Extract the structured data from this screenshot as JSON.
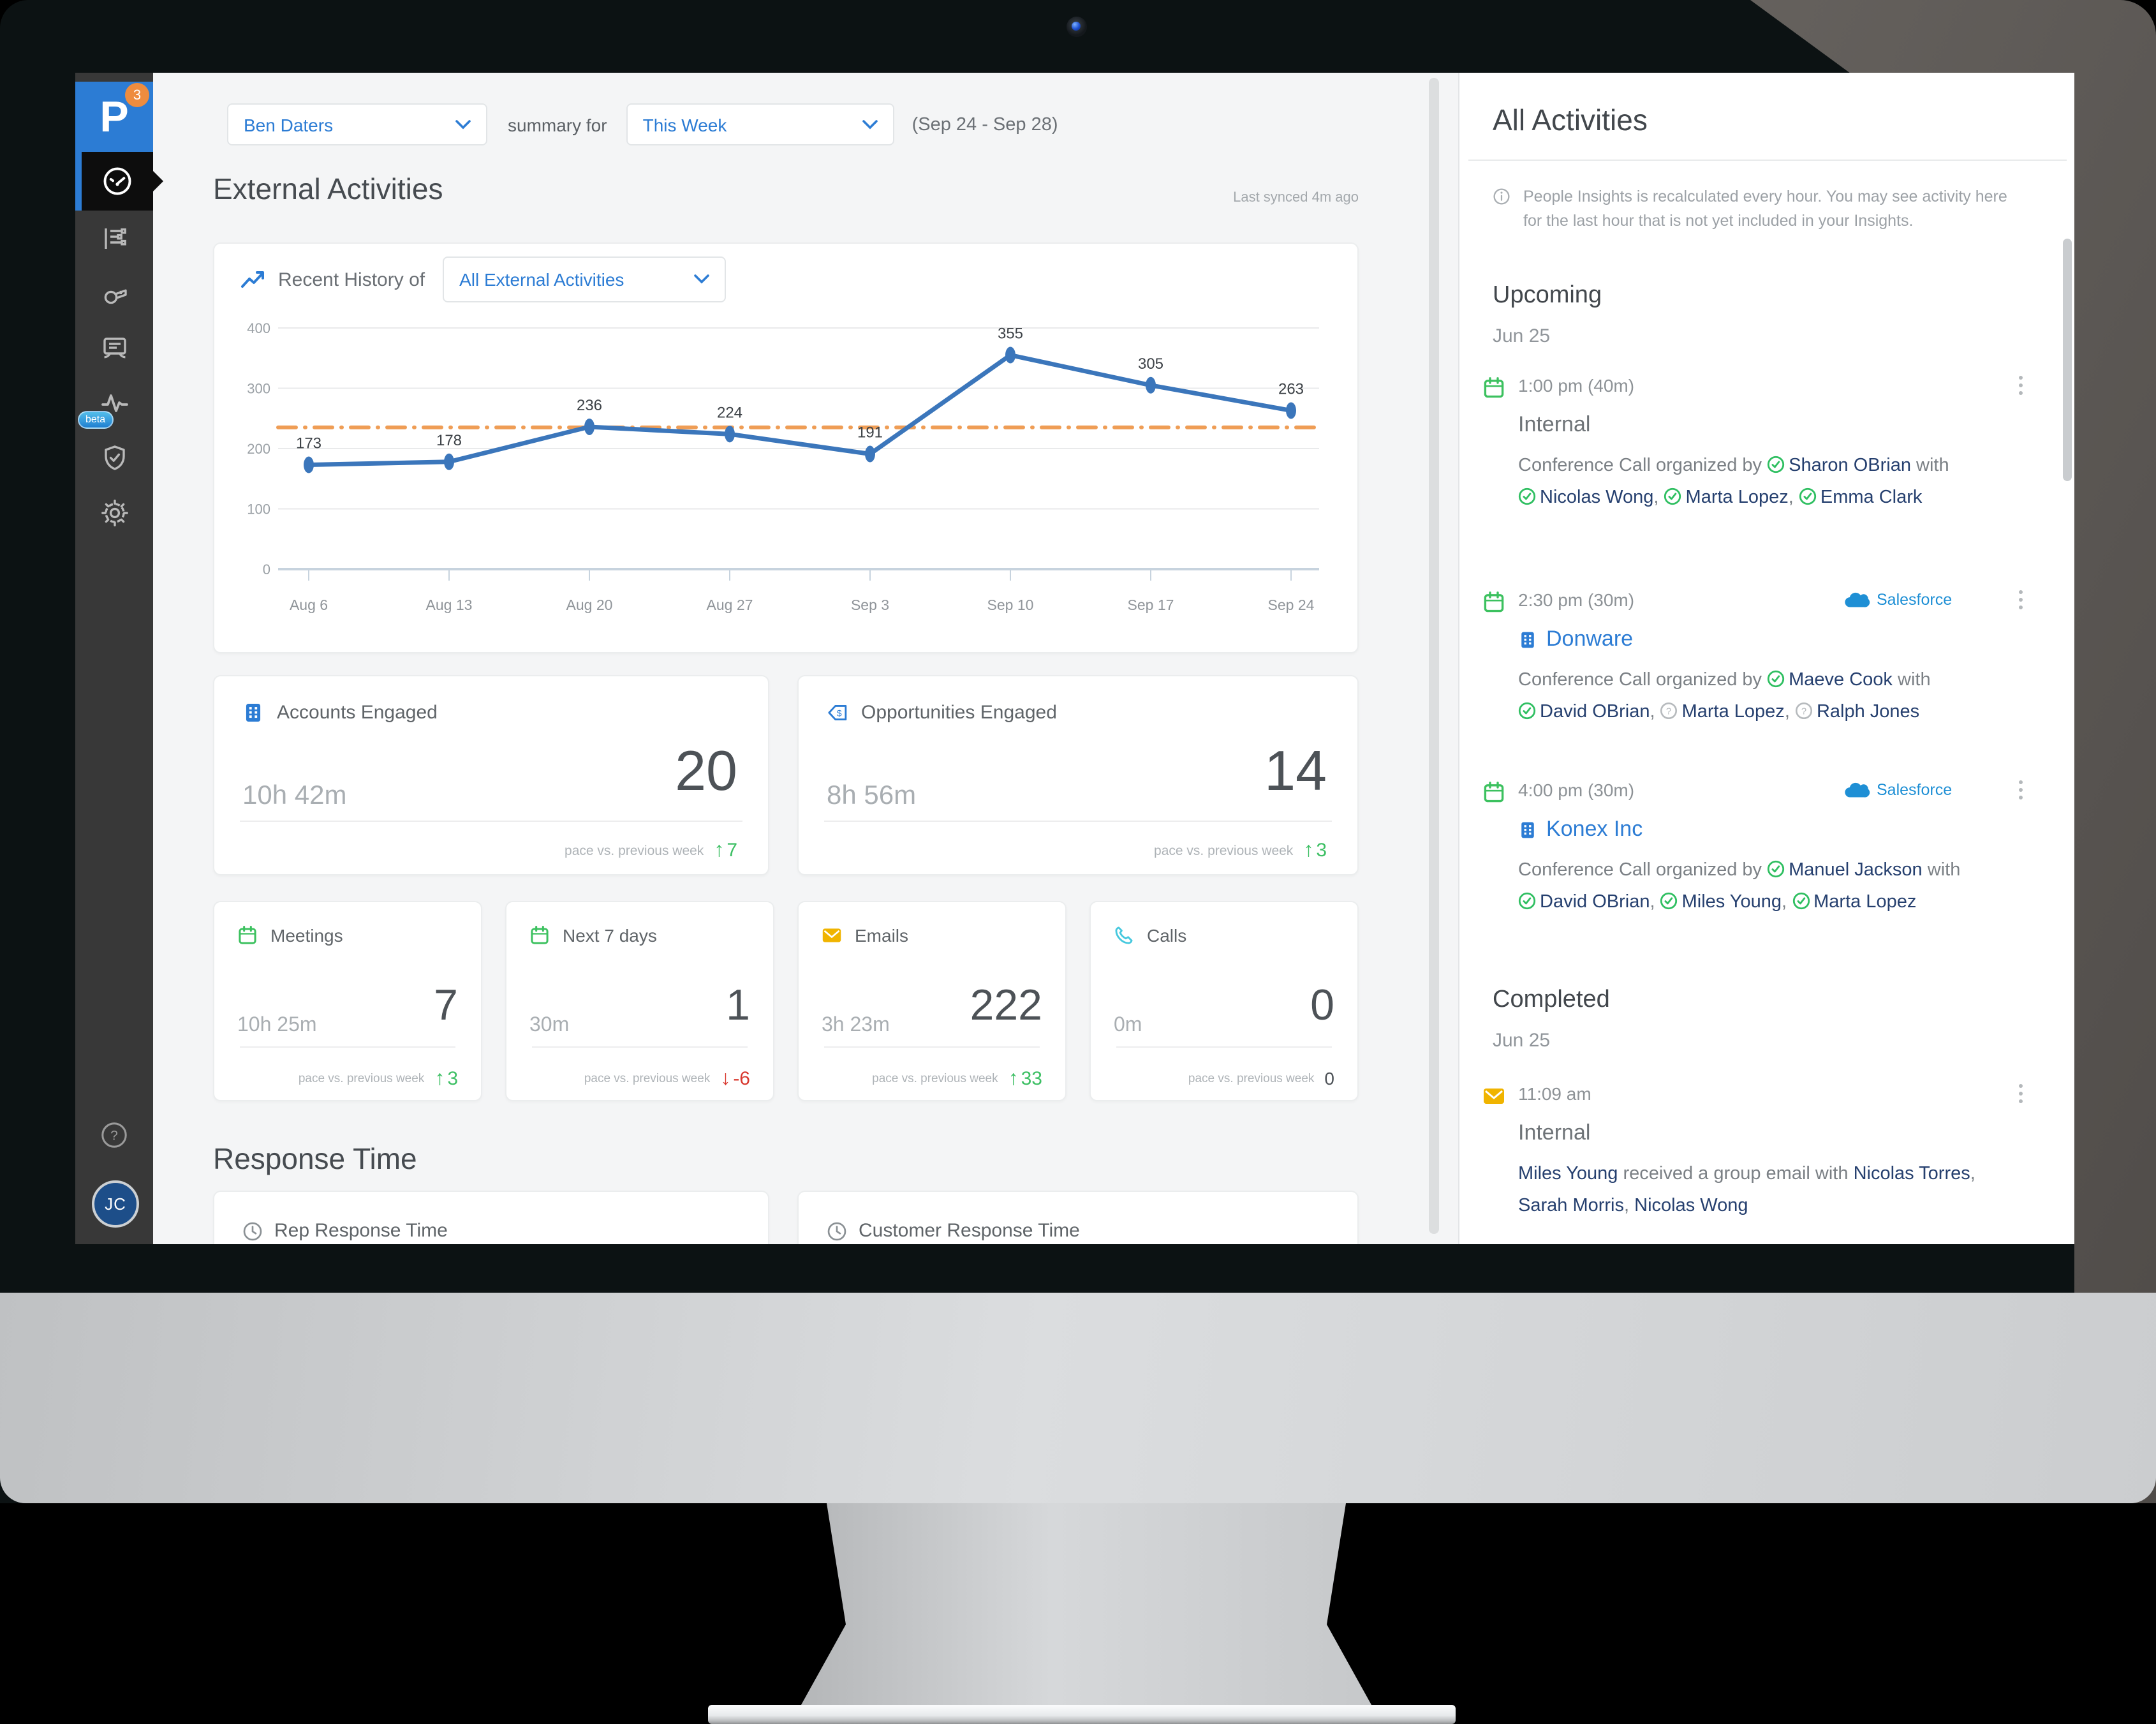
{
  "colors": {
    "accent": "#2c7cd4",
    "line": "#3b76bb",
    "threshold": "#ef9d55",
    "green": "#3cbf63",
    "red": "#d8382e",
    "yellow": "#f0b400",
    "cyan": "#45c8de",
    "navy": "#26406f",
    "salesforce": "#1e8fd5"
  },
  "sidebar": {
    "logo": "P",
    "logo_badge": "3",
    "avatar": "JC",
    "items": [
      {
        "name": "dashboard",
        "icon": "gauge-icon",
        "active": true
      },
      {
        "name": "insights",
        "icon": "list-icon"
      },
      {
        "name": "coaching",
        "icon": "whistle-icon"
      },
      {
        "name": "presentation",
        "icon": "screen-icon"
      },
      {
        "name": "activity",
        "icon": "pulse-icon",
        "badge": "beta"
      },
      {
        "name": "security",
        "icon": "shield-icon"
      },
      {
        "name": "settings",
        "icon": "gear-icon"
      }
    ]
  },
  "topbar": {
    "user": "Ben Daters",
    "summary_for": "summary for",
    "period": "This Week",
    "range": "(Sep 24 - Sep 28)"
  },
  "main": {
    "section_title": "External Activities",
    "last_synced": "Last synced 4m ago",
    "chart": {
      "history_label": "Recent History of",
      "selector": "All External Activities"
    },
    "pace_label": "pace vs. previous week",
    "stat_cards_large": [
      {
        "icon": "building-icon",
        "icon_color": "#2c7cd4",
        "title": "Accounts Engaged",
        "duration": "10h 42m",
        "value": "20",
        "delta": "7",
        "trend": "up"
      },
      {
        "icon": "tag-icon",
        "icon_color": "#2c7cd4",
        "title": "Opportunities Engaged",
        "duration": "8h 56m",
        "value": "14",
        "delta": "3",
        "trend": "up"
      }
    ],
    "stat_cards_small": [
      {
        "icon": "calendar-icon",
        "icon_color": "#3cc15f",
        "title": "Meetings",
        "duration": "10h 25m",
        "value": "7",
        "delta": "3",
        "trend": "up"
      },
      {
        "icon": "calendar-icon",
        "icon_color": "#3cc15f",
        "title": "Next 7 days",
        "duration": "30m",
        "value": "1",
        "delta": "-6",
        "trend": "down"
      },
      {
        "icon": "envelope-icon",
        "icon_color": "#f0b400",
        "title": "Emails",
        "duration": "3h 23m",
        "value": "222",
        "delta": "33",
        "trend": "up"
      },
      {
        "icon": "phone-icon",
        "icon_color": "#45c8de",
        "title": "Calls",
        "duration": "0m",
        "value": "0",
        "delta": "0",
        "trend": "flat"
      }
    ],
    "response_time": {
      "title": "Response Time",
      "cards": [
        {
          "icon": "clock-icon",
          "title": "Rep Response Time"
        },
        {
          "icon": "clock-icon",
          "title": "Customer Response Time"
        }
      ]
    }
  },
  "chart_data": {
    "type": "line",
    "categories": [
      "Aug 6",
      "Aug 13",
      "Aug 20",
      "Aug 27",
      "Sep 3",
      "Sep 10",
      "Sep 17",
      "Sep 24"
    ],
    "series": [
      {
        "name": "All External Activities",
        "values": [
          173,
          178,
          236,
          224,
          191,
          355,
          305,
          263
        ],
        "color": "#3b76bb"
      }
    ],
    "threshold": {
      "value": 235,
      "color": "#ef9d55",
      "style": "dash-dot"
    },
    "ylim": [
      0,
      400
    ],
    "yticks": [
      0,
      100,
      200,
      300,
      400
    ],
    "grid": true,
    "legend": "none"
  },
  "panel": {
    "title": "All Activities",
    "notice": "People Insights is recalculated every hour. You may see activity here for the last hour that is not yet included in your Insights.",
    "upcoming": {
      "title": "Upcoming",
      "date": "Jun 25",
      "events": [
        {
          "icon": "calendar-icon",
          "time": "1:00 pm (40m)",
          "source": null,
          "company": null,
          "title": "Internal",
          "body": [
            {
              "t": "Conference Call organized by "
            },
            {
              "p": "Sharon OBrian",
              "s": "confirmed"
            },
            {
              "t": " with "
            },
            {
              "p": "Nicolas Wong",
              "s": "confirmed"
            },
            {
              "t": ", "
            },
            {
              "p": "Marta Lopez",
              "s": "confirmed"
            },
            {
              "t": ", "
            },
            {
              "p": "Emma Clark",
              "s": "confirmed"
            }
          ]
        },
        {
          "icon": "calendar-icon",
          "time": "2:30 pm (30m)",
          "source": "Salesforce",
          "company": "Donware",
          "title": null,
          "body": [
            {
              "t": "Conference Call organized by "
            },
            {
              "p": "Maeve Cook",
              "s": "confirmed"
            },
            {
              "t": " with "
            },
            {
              "p": "David OBrian",
              "s": "confirmed"
            },
            {
              "t": ", "
            },
            {
              "p": "Marta Lopez",
              "s": "unknown"
            },
            {
              "t": ", "
            },
            {
              "p": "Ralph Jones",
              "s": "unknown"
            }
          ]
        },
        {
          "icon": "calendar-icon",
          "time": "4:00 pm (30m)",
          "source": "Salesforce",
          "company": "Konex Inc",
          "title": null,
          "body": [
            {
              "t": "Conference Call organized by "
            },
            {
              "p": "Manuel Jackson",
              "s": "confirmed"
            },
            {
              "t": " with "
            },
            {
              "p": "David OBrian",
              "s": "confirmed"
            },
            {
              "t": ", "
            },
            {
              "p": "Miles Young",
              "s": "confirmed"
            },
            {
              "t": ", "
            },
            {
              "p": "Marta Lopez",
              "s": "confirmed"
            }
          ]
        }
      ]
    },
    "completed": {
      "title": "Completed",
      "date": "Jun 25",
      "events": [
        {
          "icon": "envelope-icon",
          "time": "11:09 am",
          "source": null,
          "company": null,
          "title": "Internal",
          "body": [
            {
              "p": "Miles Young",
              "s": "none"
            },
            {
              "t": " received a group email with "
            },
            {
              "p": "Nicolas Torres",
              "s": "none"
            },
            {
              "t": ", "
            },
            {
              "p": "Sarah Morris",
              "s": "none"
            },
            {
              "t": ", "
            },
            {
              "p": "Nicolas Wong",
              "s": "none"
            }
          ]
        }
      ]
    }
  }
}
